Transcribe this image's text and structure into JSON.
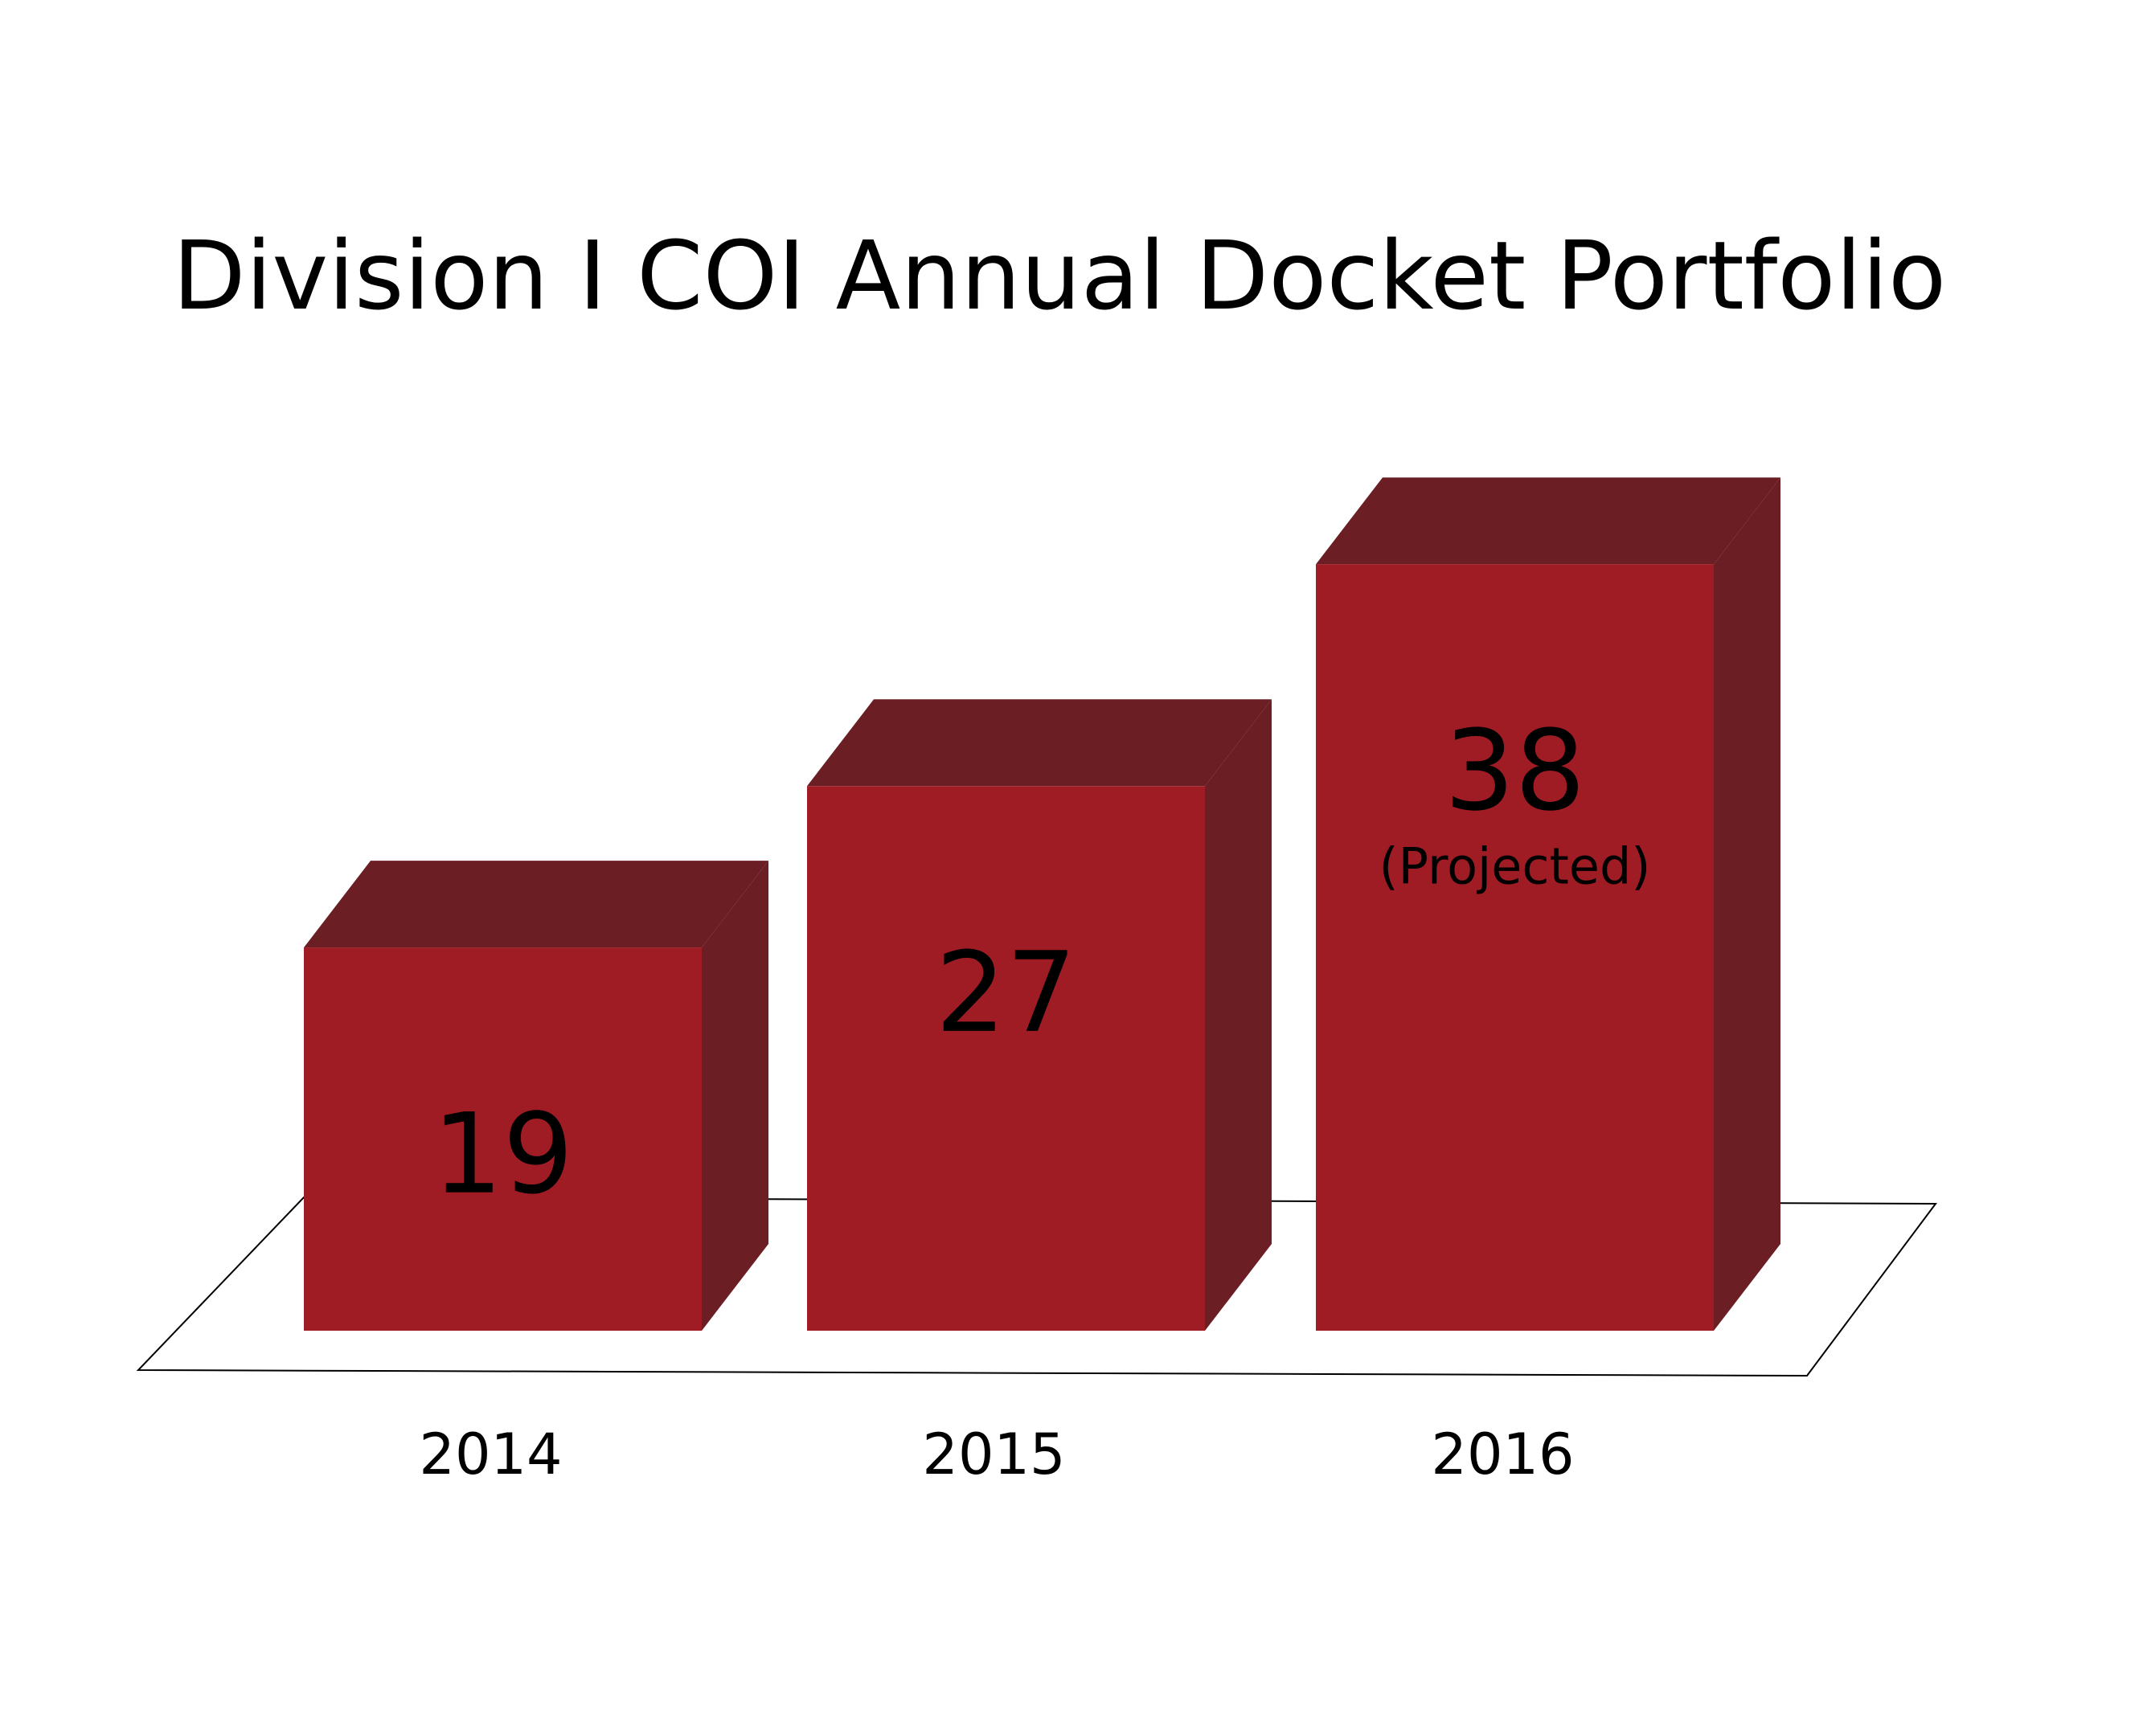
{
  "chart_data": {
    "type": "bar3d",
    "title": "Division I COI Annual Docket Portfolio",
    "categories": [
      "2014",
      "2015",
      "2016"
    ],
    "values": [
      19,
      27,
      38
    ],
    "value_notes": [
      null,
      null,
      "(Projected)"
    ],
    "color": "#a01c24",
    "side_color": "#6b1e23"
  }
}
